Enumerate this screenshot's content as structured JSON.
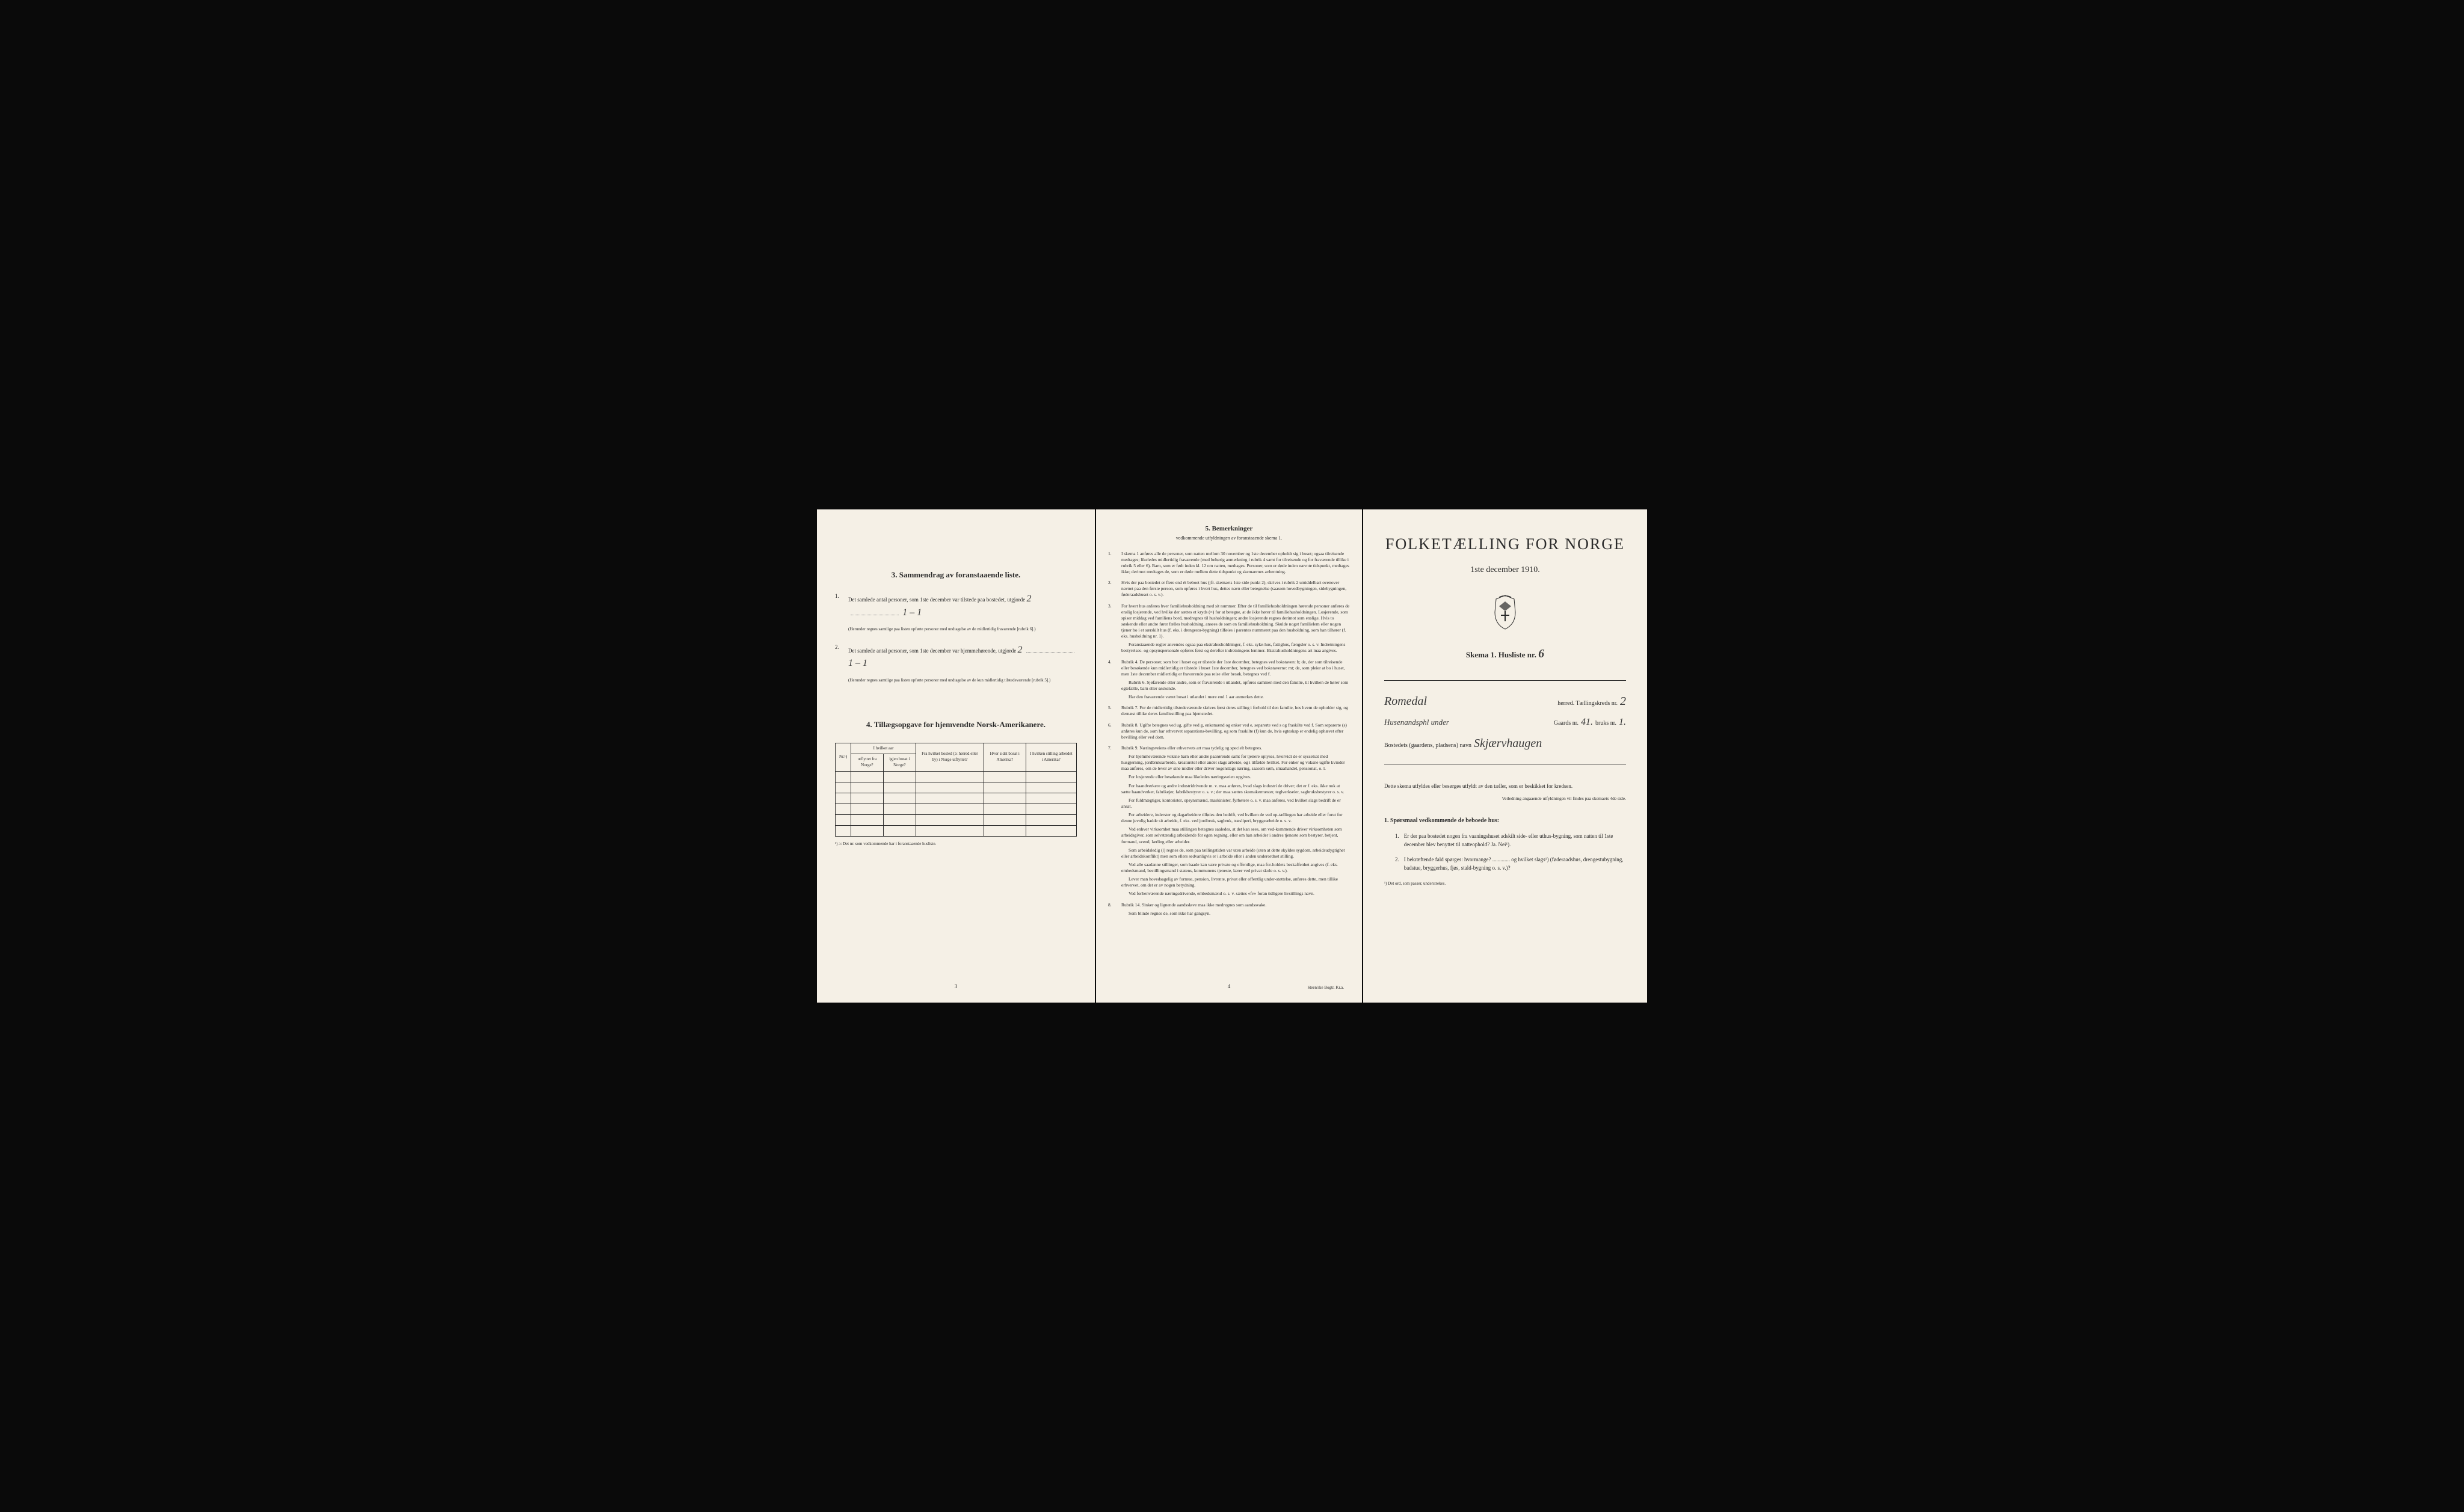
{
  "colors": {
    "pageBackground": "#f5f0e6",
    "pageBorder": "#d8d0c0",
    "text": "#2a2a2a",
    "handwriting": "#3a3a3a",
    "bodyBackground": "#0a0a0a",
    "dotted": "#888888"
  },
  "page1": {
    "section3": {
      "title": "3.  Sammendrag av foranstaaende liste.",
      "item1": {
        "number": "1.",
        "text": "Det samlede antal personer, som 1ste december var tilstede paa bostedet, utgjorde",
        "handwritten1": "2",
        "handwritten2": "1 – 1",
        "fineprint": "(Herunder regnes samtlige paa listen opførte personer med undtagelse av de midlertidig fraværende [rubrik 6].)"
      },
      "item2": {
        "number": "2.",
        "text": "Det samlede antal personer, som 1ste december var hjemmehørende, utgjorde",
        "handwritten1": "2",
        "handwritten2": "1 – 1",
        "fineprint": "(Herunder regnes samtlige paa listen opførte personer med undtagelse av de kun midlertidig tilstedeværende [rubrik 5].)"
      }
    },
    "section4": {
      "title": "4.  Tillægsopgave for hjemvendte Norsk-Amerikanere.",
      "tableHeaders": {
        "col1": "Nr.¹)",
        "col2_span": "I hvilket aar",
        "col2a": "utflyttet fra Norge?",
        "col2b": "igjen bosat i Norge?",
        "col3": "Fra hvilket bosted (ɔ: herred eller by) i Norge utflyttet?",
        "col4": "Hvor sidst bosat i Amerika?",
        "col5": "I hvilken stilling arbeidet i Amerika?"
      },
      "footnote": "¹) ɔ: Det nr. som vedkommende har i foranstaaende husliste."
    },
    "pageNumber": "3"
  },
  "page2": {
    "section5": {
      "title": "5.  Bemerkninger",
      "subtitle": "vedkommende utfyldningen av foranstaaende skema 1."
    },
    "items": [
      {
        "num": "1.",
        "text": "I skema 1 anføres alle de personer, som natten mellom 30 november og 1ste december opholdt sig i huset; ogsaa tilreisende medtages; likeledes midlertidig fraværende (med behørig anmerkning i rubrik 4 samt for tilreisende og for fraværende tillike i rubrik 5 eller 6). Barn, som er født inden kl. 12 om natten, medtages. Personer, som er døde inden nævnte tidspunkt, medtages ikke; derimot medtages de, som er døde mellem dette tidspunkt og skemaernes avhentning."
      },
      {
        "num": "2.",
        "text": "Hvis der paa bostedet er flere end ét beboet hus (jfr. skemaets 1ste side punkt 2), skrives i rubrik 2 umiddelbart ovenover navnet paa den første person, som opføres i hvert hus, dettes navn eller betegnelse (saasom hovedbygningen, sidebygningen, føderaadshuset o. s. v.)."
      },
      {
        "num": "3.",
        "text": "For hvert hus anføres hver familiehusholdning med sit nummer. Efter de til familiehusholdningen hørende personer anføres de enslig losjerende, ved hvilke der sættes et kryds (×) for at betegne, at de ikke hører til familiehusholdningen. Losjerende, som spiser middag ved familiens bord, medregnes til husholdningen; andre losjerende regnes derimot som enslige. Hvis to søskende eller andre fører fælles husholdning, ansees de som en familiehusholdning. Skulde noget familielem eller nogen tjener bo i et særskilt hus (f. eks. i drengestu-bygning) tilføies i parentes nummeret paa den husholdning, som han tilhører (f. eks. husholdning nr. 1).",
        "sub": "Foranstaaende regler anvendes ogsaa paa ekstrahusholdninger, f. eks. syke-hus, fattighus, fængsler o. s. v. Indretningens bestyrelses- og opsynspersonale opføres først og derefter indretningens lemmer. Ekstrahusholdningens art maa angives."
      },
      {
        "num": "4.",
        "text": "Rubrik 4. De personer, som bor i huset og er tilstede der 1ste december, betegnes ved bokstaven: b; de, der som tilreisende eller besøkende kun midlertidig er tilstede i huset 1ste december, betegnes ved bokstaverne: mt; de, som pleier at bo i huset, men 1ste december midlertidig er fraværende paa reise eller besøk, betegnes ved f.",
        "sub1": "Rubrik 6. Sjøfarende eller andre, som er fraværende i utlandet, opføres sammen med den familie, til hvilken de hører som egtefælle, barn eller søskende.",
        "sub2": "Har den fraværende været bosat i utlandet i mere end 1 aar anmerkes dette."
      },
      {
        "num": "5.",
        "text": "Rubrik 7. For de midlertidig tilstedeværende skrives først deres stilling i forhold til den familie, hos hvem de opholder sig, og dernæst tillike deres familiestilling paa hjemstedet."
      },
      {
        "num": "6.",
        "text": "Rubrik 8. Ugifte betegnes ved ug, gifte ved g, enkemænd og enker ved e, separerte ved s og fraskilte ved f. Som separerte (s) anføres kun de, som har erhvervet separations-bevilling, og som fraskilte (f) kun de, hvis egteskap er endelig ophævet efter bevilling eller ved dom."
      },
      {
        "num": "7.",
        "text": "Rubrik 9. Næringsveiens eller erhvervets art maa tydelig og specielt betegnes.",
        "paras": [
          "For hjemmeværende voksne barn eller andre paarørende samt for tjenere oplyses, hvorvidt de er sysselsat med husgjerning, jordbruksarbeide, kreaturstel eller andet slags arbeide, og i tilfælde hvilket. For enker og voksne ugifte kvinder maa anføres, om de lever av sine midler eller driver nogenslags næring, saasom søm, smaahandel, pensionat, o. l.",
          "For losjerende eller besøkende maa likeledes næringsveien opgives.",
          "For haandverkere og andre industridrivende m. v. maa anføres, hvad slags industri de driver; det er f. eks. ikke nok at sætte haandverker, fabrikejer, fabrikbestyrer o. s. v.; der maa sættes skomakermester, teglverkseier, sagbruksbestyrer o. s. v.",
          "For fuldmægtiger, kontorister, opsynsmænd, maskinister, fyrbøtere o. s. v. maa anføres, ved hvilket slags bedrift de er ansat.",
          "For arbeidere, inderster og dagarbeidere tilføies den bedrift, ved hvilken de ved op-tællingen har arbeide eller forut for denne jevnlig hadde sit arbeide, f. eks. ved jordbruk, sagbruk, træsliperi, bryggearbeide o. s. v.",
          "Ved enhver virksomhet maa stillingen betegnes saaledes, at det kan sees, om ved-kommende driver virksomheten som arbeidsgiver, som selvstændig arbeidende for egen regning, eller om han arbeider i andres tjeneste som bestyrer, betjent, formand, svend, lærling eller arbeider.",
          "Som arbeidsledig (l) regnes de, som paa tællingstiden var uten arbeide (uten at dette skyldes sygdom, arbeidsudygtighet eller arbeidskonflikt) men som ellers sedvanligvis er i arbeide eller i anden underordnet stilling.",
          "Ved alle saadanne stillinger, som baade kan være private og offentlige, maa for-holdets beskaffenhet angives (f. eks. embedsmand, bestillingsmand i statens, kommunens tjeneste, lærer ved privat skole o. s. v.).",
          "Lever man hovedsagelig av formue, pension, livrente, privat eller offentlig under-støttelse, anføres dette, men tillike erhvervet, om det er av nogen betydning.",
          "Ved forhenværende næringsdrivende, embedsmænd o. s. v. sættes «fv» foran tidligere livstillings navn."
        ]
      },
      {
        "num": "8.",
        "text": "Rubrik 14. Sinker og lignende aandssløve maa ikke medregnes som aandssvake.",
        "sub": "Som blinde regnes de, som ikke har gangsyn."
      }
    ],
    "pageNumber": "4",
    "printerNote": "Steen'ske Bogtr.  Kr.a."
  },
  "page3": {
    "mainTitle": "FOLKETÆLLING FOR NORGE",
    "censusDate": "1ste december 1910.",
    "skemaLabel": "Skema 1.   Husliste nr.",
    "huslisteNr": "6",
    "line1": {
      "handwritten": "Romedal",
      "text1": "herred.  Tællingskreds nr.",
      "handwritten2": "2"
    },
    "line2": {
      "handwritten1": "Husenandsphl under",
      "text1": "Gaards nr.",
      "handwritten2": "41.",
      "text2": "bruks nr.",
      "handwritten3": "1."
    },
    "line3": {
      "text": "Bostedets (gaardens, pladsens) navn",
      "handwritten": "Skjærvhaugen"
    },
    "instructionText": "Dette skema utfyldes eller besørges utfyldt av den tæller, som er beskikket for kredsen.",
    "instructionFine": "Veiledning angaaende utfyldningen vil findes paa skemaets 4de side.",
    "questionHeader": "1. Spørsmaal vedkommende de beboede hus:",
    "questions": [
      {
        "num": "1.",
        "text": "Er der paa bostedet nogen fra vaaningshuset adskilt side- eller uthus-bygning, som natten til 1ste december blev benyttet til natteophold?   Ja.   Nei¹)."
      },
      {
        "num": "2.",
        "text": "I bekræftende fald spørges: hvormange? ............. og hvilket slags¹) (føderaadshus, drengestubygning, badstue, bryggerhus, fjøs, stald-bygning o. s. v.)?"
      }
    ],
    "footnote": "¹) Det ord, som passer, understrekes."
  }
}
